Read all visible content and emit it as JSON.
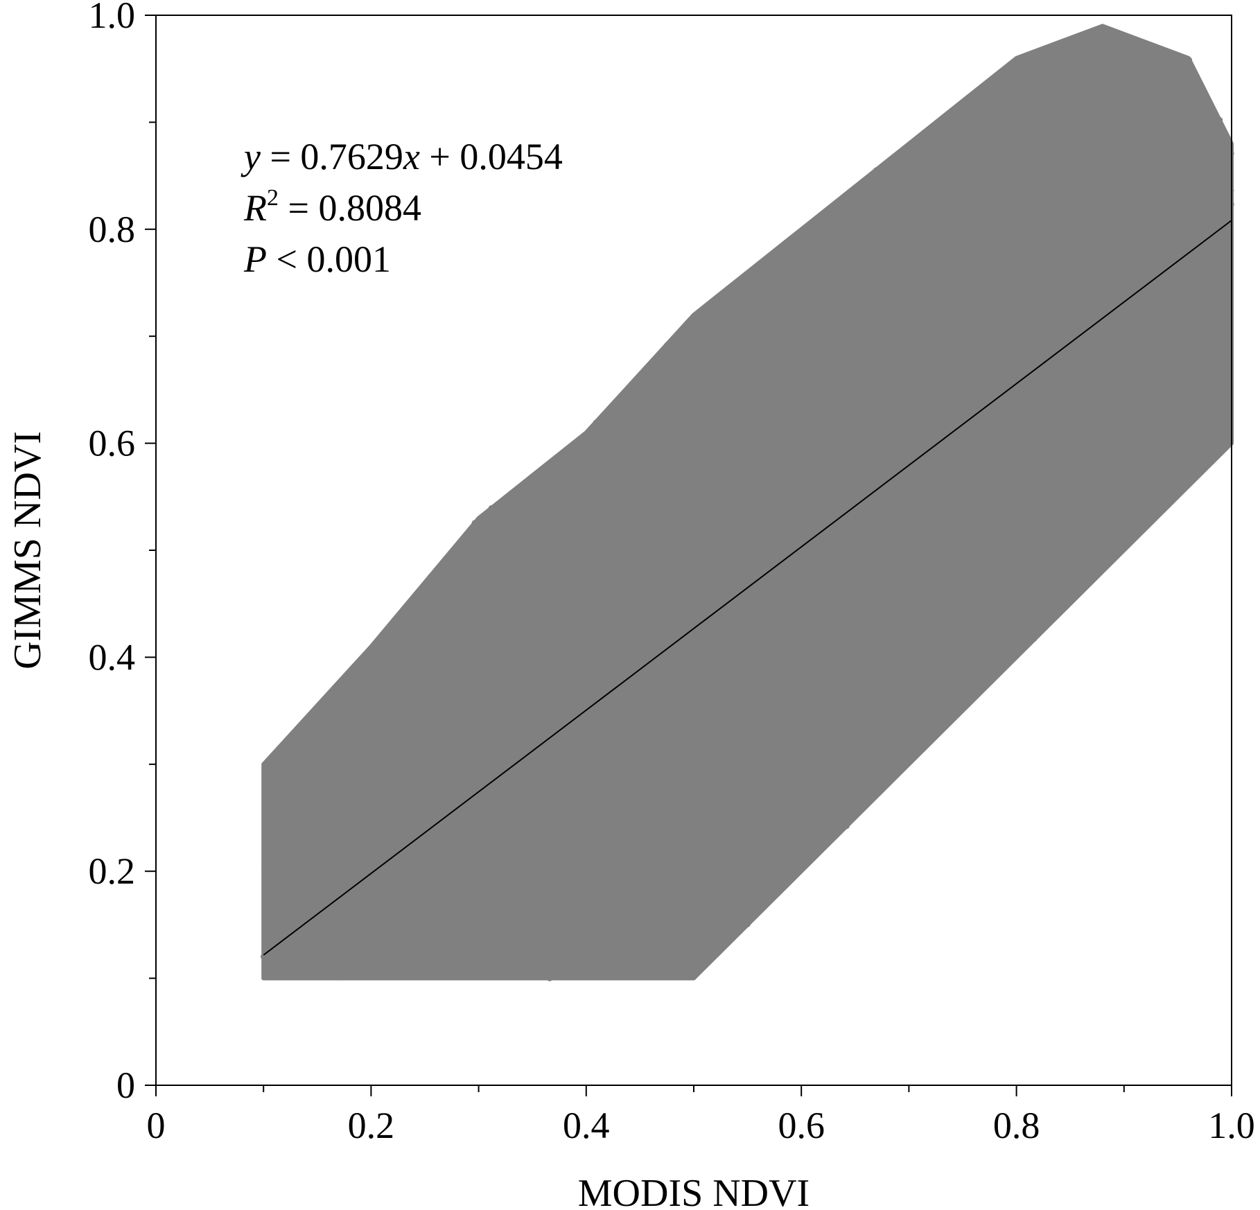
{
  "chart_data": {
    "type": "scatter",
    "title": "",
    "xlabel": "MODIS NDVI",
    "ylabel": "GIMMS NDVI",
    "xlim": [
      0,
      1.0
    ],
    "ylim": [
      0,
      1.0
    ],
    "x_ticks": [
      "0",
      "0.2",
      "0.4",
      "0.6",
      "0.8",
      "1.0"
    ],
    "y_ticks": [
      "0",
      "0.2",
      "0.4",
      "0.6",
      "0.8",
      "1.0"
    ],
    "x_tick_values": [
      0,
      0.2,
      0.4,
      0.6,
      0.8,
      1.0
    ],
    "y_tick_values": [
      0,
      0.2,
      0.4,
      0.6,
      0.8,
      1.0
    ],
    "minor_tick_step": 0.1,
    "grid": false,
    "point_color": "#808080",
    "line_color": "#000000",
    "fit_line": {
      "slope": 0.7629,
      "intercept": 0.0454,
      "x_range": [
        0.1,
        1.0
      ]
    },
    "point_cloud_region": [
      [
        0.1,
        0.1
      ],
      [
        0.5,
        0.1
      ],
      [
        0.7,
        0.3
      ],
      [
        0.85,
        0.45
      ],
      [
        0.95,
        0.55
      ],
      [
        1.0,
        0.6
      ],
      [
        1.0,
        0.88
      ],
      [
        0.96,
        0.96
      ],
      [
        0.88,
        0.99
      ],
      [
        0.8,
        0.96
      ],
      [
        0.7,
        0.88
      ],
      [
        0.6,
        0.8
      ],
      [
        0.5,
        0.72
      ],
      [
        0.4,
        0.61
      ],
      [
        0.3,
        0.53
      ],
      [
        0.2,
        0.41
      ],
      [
        0.1,
        0.3
      ]
    ],
    "annotations": {
      "equation_var_y": "y",
      "equation_rhs_1": " = 0.7629",
      "equation_var_x": "x",
      "equation_rhs_2": " + 0.0454",
      "r2_var": "R",
      "r2_sup": "2",
      "r2_rhs": " = 0.8084",
      "p_var": "P",
      "p_rhs": " < 0.001"
    }
  }
}
